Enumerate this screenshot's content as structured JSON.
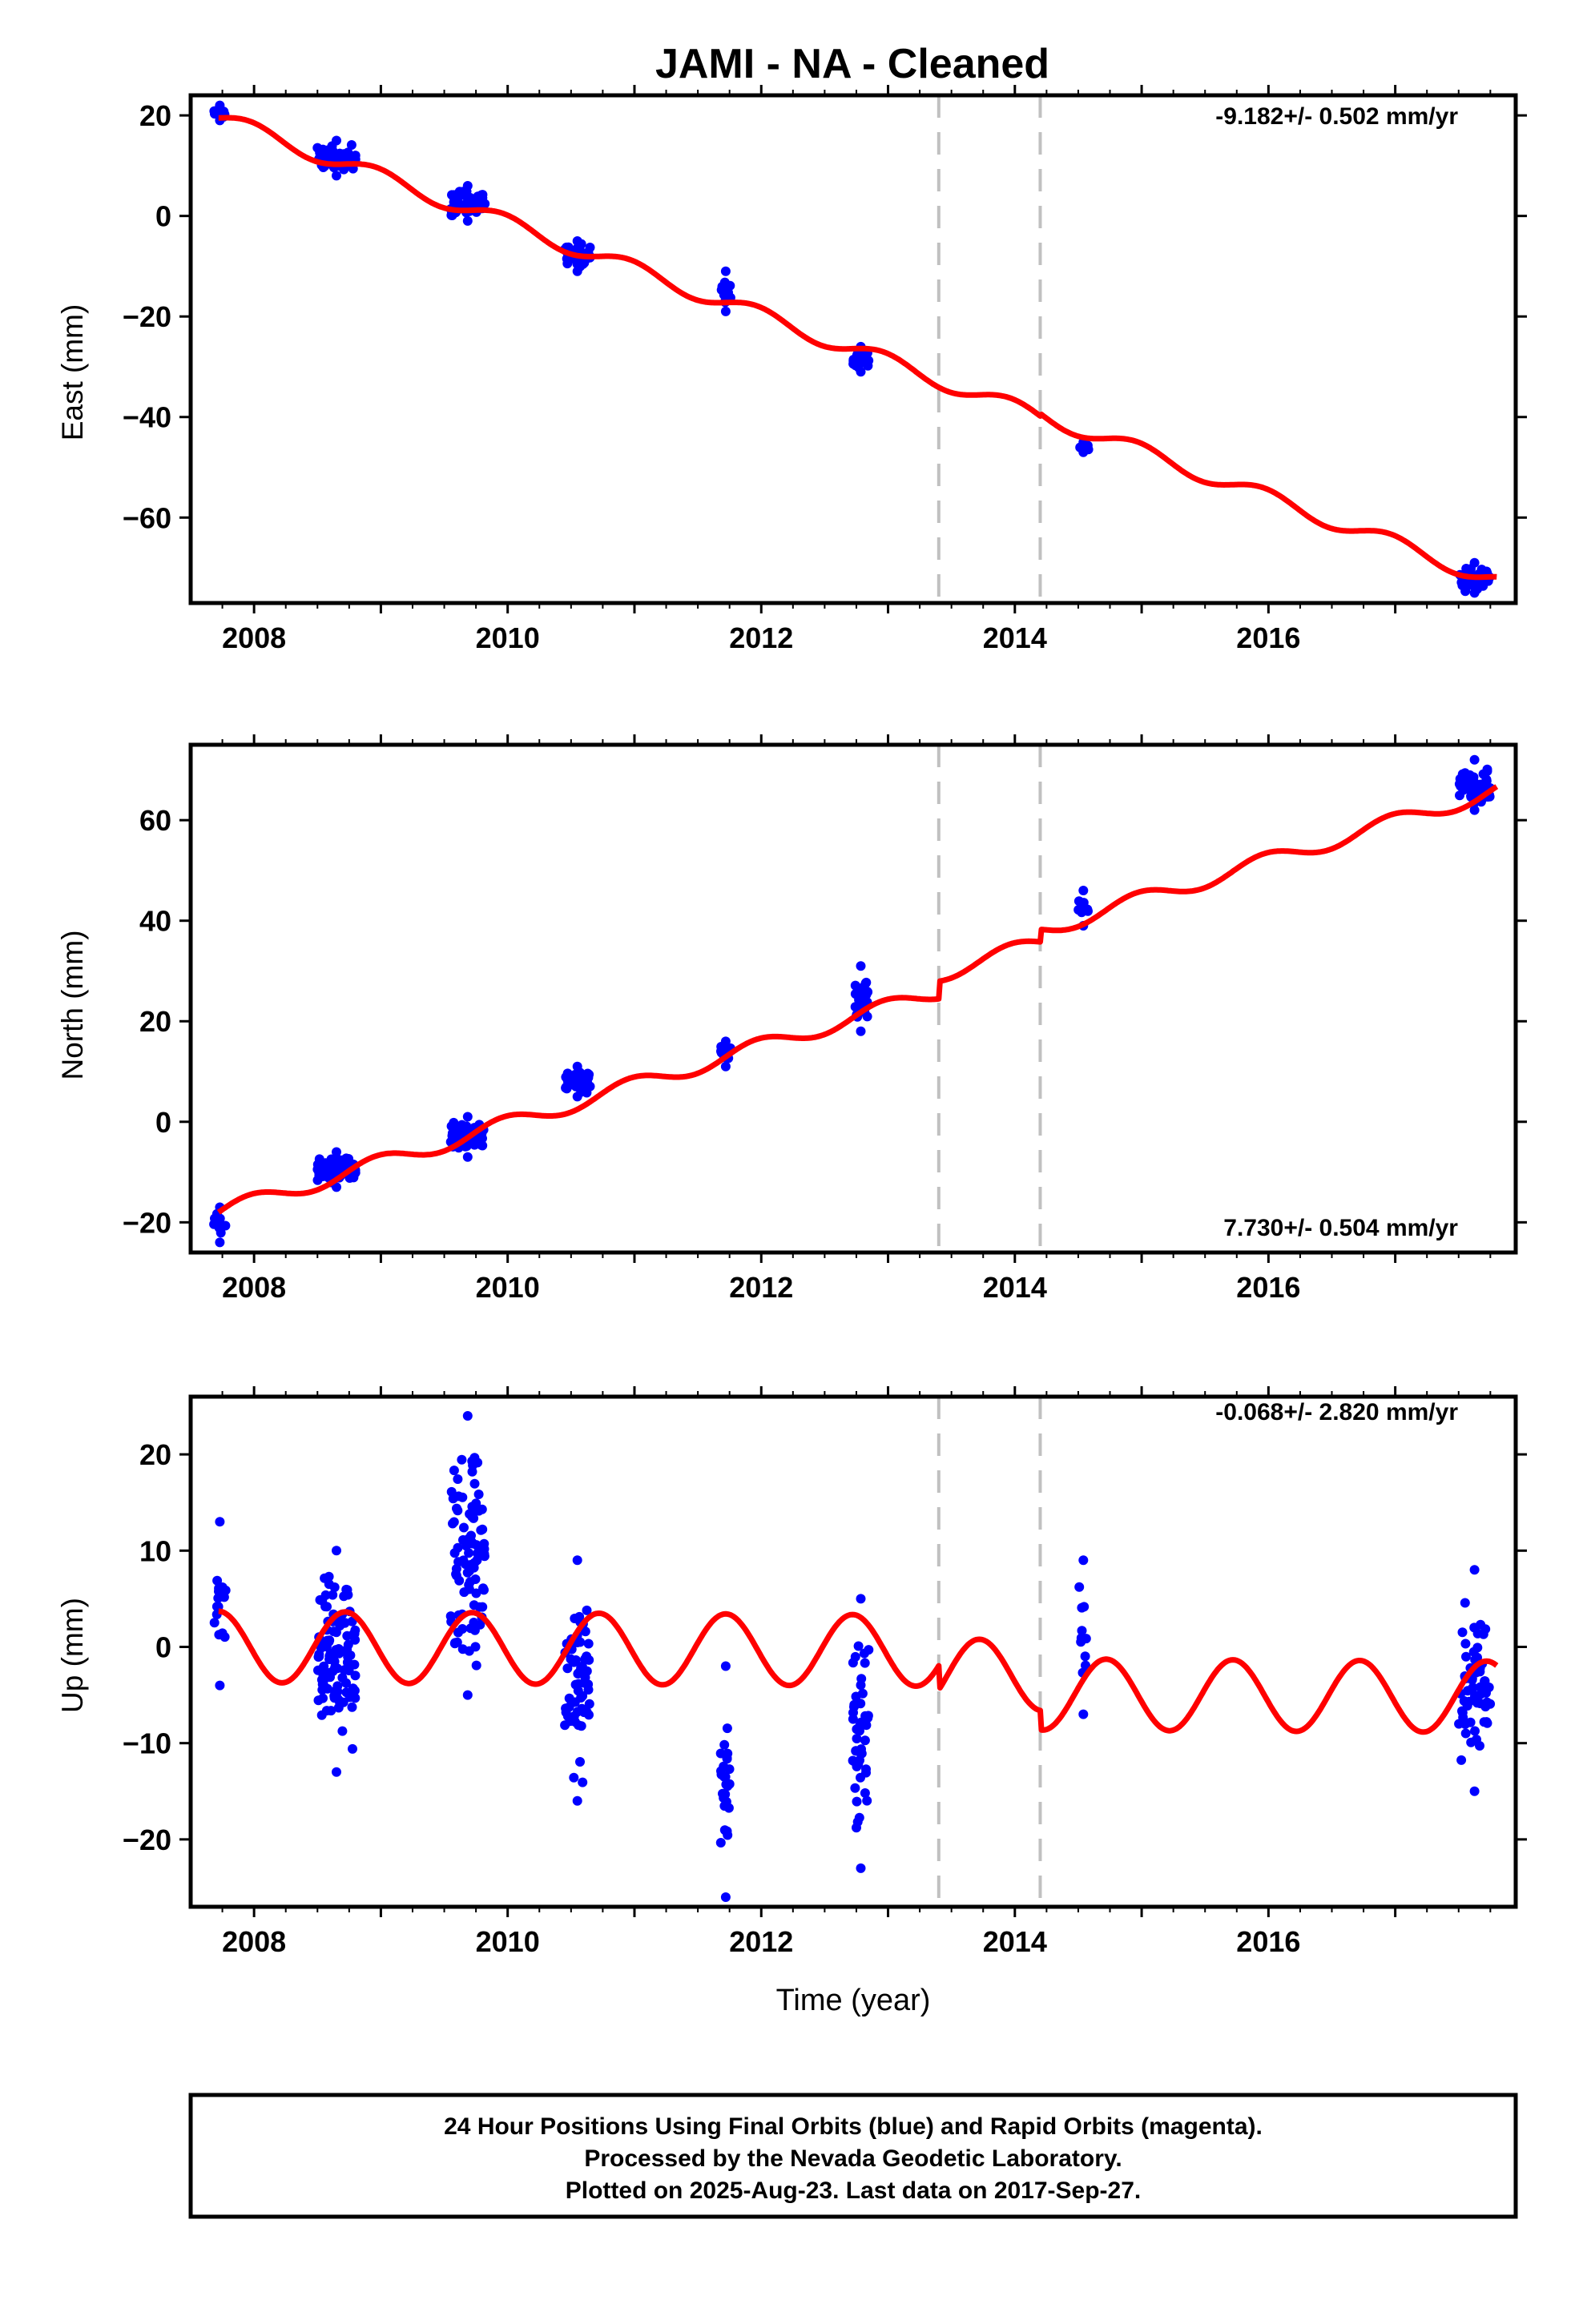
{
  "title": "JAMI  - NA - Cleaned",
  "xlabel": "Time (year)",
  "footer": [
    "24 Hour Positions Using Final Orbits (blue) and Rapid Orbits (magenta).",
    "Processed by the Nevada Geodetic Laboratory.",
    "Plotted on 2025-Aug-23. Last data on 2017-Sep-27."
  ],
  "colors": {
    "data": "#0000ff",
    "model": "#ff0000",
    "breaks": "#c0c0c0",
    "frame": "#000000"
  },
  "chart_data": [
    {
      "type": "scatter",
      "component": "East",
      "ylabel": "East (mm)",
      "rate_label": "-9.182+/- 0.502 mm/yr",
      "xlim": [
        2007.5,
        2017.95
      ],
      "ylim": [
        -77,
        24
      ],
      "xticks": [
        2008,
        2010,
        2012,
        2014,
        2016
      ],
      "yticks": [
        20,
        0,
        -20,
        -40,
        -60
      ],
      "grid": false,
      "breaks": [
        2013.4,
        2014.2
      ],
      "model": {
        "intercept": 19.5,
        "t0": 2007.72,
        "rate": -9.182,
        "amp": 1.6,
        "phase": 0,
        "offsets": [
          {
            "t": 2014.2,
            "dy": 0.5
          }
        ]
      },
      "clusters": [
        {
          "x": [
            2007.68,
            2007.78
          ],
          "y": [
            19,
            22
          ],
          "n": 10
        },
        {
          "x": [
            2008.5,
            2008.8
          ],
          "y": [
            8,
            15
          ],
          "n": 70
        },
        {
          "x": [
            2009.55,
            2009.82
          ],
          "y": [
            -1,
            6
          ],
          "n": 60
        },
        {
          "x": [
            2010.45,
            2010.65
          ],
          "y": [
            -11,
            -5
          ],
          "n": 45
        },
        {
          "x": [
            2011.68,
            2011.76
          ],
          "y": [
            -19,
            -11
          ],
          "n": 15
        },
        {
          "x": [
            2012.72,
            2012.85
          ],
          "y": [
            -31,
            -26
          ],
          "n": 30
        },
        {
          "x": [
            2014.5,
            2014.58
          ],
          "y": [
            -47,
            -45
          ],
          "n": 8
        },
        {
          "x": [
            2017.5,
            2017.75
          ],
          "y": [
            -75,
            -69
          ],
          "n": 50
        }
      ]
    },
    {
      "type": "scatter",
      "component": "North",
      "ylabel": "North (mm)",
      "rate_label": "7.730+/- 0.504 mm/yr",
      "xlim": [
        2007.5,
        2017.95
      ],
      "ylim": [
        -26,
        75
      ],
      "xticks": [
        2008,
        2010,
        2012,
        2014,
        2016
      ],
      "yticks": [
        60,
        40,
        20,
        0,
        -20
      ],
      "grid": false,
      "breaks": [
        2013.4,
        2014.2
      ],
      "model": {
        "intercept": -18,
        "t0": 2007.72,
        "rate": 7.73,
        "amp": 1.6,
        "phase": 0,
        "offsets": [
          {
            "t": 2013.4,
            "dy": 3.5
          },
          {
            "t": 2014.2,
            "dy": 2.5
          }
        ]
      },
      "clusters": [
        {
          "x": [
            2007.68,
            2007.78
          ],
          "y": [
            -24,
            -17
          ],
          "n": 10
        },
        {
          "x": [
            2008.5,
            2008.8
          ],
          "y": [
            -13,
            -6
          ],
          "n": 90
        },
        {
          "x": [
            2009.55,
            2009.82
          ],
          "y": [
            -7,
            1
          ],
          "n": 70
        },
        {
          "x": [
            2010.45,
            2010.65
          ],
          "y": [
            5,
            11
          ],
          "n": 40
        },
        {
          "x": [
            2011.68,
            2011.76
          ],
          "y": [
            11,
            16
          ],
          "n": 12
        },
        {
          "x": [
            2012.72,
            2012.85
          ],
          "y": [
            18,
            31
          ],
          "n": 30
        },
        {
          "x": [
            2014.5,
            2014.58
          ],
          "y": [
            39,
            46
          ],
          "n": 8
        },
        {
          "x": [
            2017.5,
            2017.75
          ],
          "y": [
            62,
            72
          ],
          "n": 50
        }
      ]
    },
    {
      "type": "scatter",
      "component": "Up",
      "ylabel": "Up (mm)",
      "rate_label": "-0.068+/- 2.820 mm/yr",
      "xlim": [
        2007.5,
        2017.95
      ],
      "ylim": [
        -27,
        26
      ],
      "xticks": [
        2008,
        2010,
        2012,
        2014,
        2016
      ],
      "yticks": [
        20,
        10,
        0,
        -10,
        -20
      ],
      "grid": false,
      "breaks": [
        2013.4,
        2014.2
      ],
      "model": {
        "intercept": 0,
        "t0": 2007.72,
        "rate": -0.068,
        "amp": 3.7,
        "phase": 1.57,
        "offsets": [
          {
            "t": 2013.4,
            "dy": -2.5
          },
          {
            "t": 2014.2,
            "dy": -2
          }
        ]
      },
      "clusters": [
        {
          "x": [
            2007.68,
            2007.78
          ],
          "y": [
            -4,
            13
          ],
          "n": 15
        },
        {
          "x": [
            2008.5,
            2008.8
          ],
          "y": [
            -13,
            10
          ],
          "n": 110
        },
        {
          "x": [
            2009.55,
            2009.82
          ],
          "y": [
            -5,
            24
          ],
          "n": 90
        },
        {
          "x": [
            2010.45,
            2010.65
          ],
          "y": [
            -16,
            9
          ],
          "n": 60
        },
        {
          "x": [
            2011.68,
            2011.76
          ],
          "y": [
            -26,
            -2
          ],
          "n": 25
        },
        {
          "x": [
            2012.72,
            2012.85
          ],
          "y": [
            -23,
            5
          ],
          "n": 45
        },
        {
          "x": [
            2014.5,
            2014.58
          ],
          "y": [
            -7,
            9
          ],
          "n": 10
        },
        {
          "x": [
            2017.5,
            2017.75
          ],
          "y": [
            -15,
            8
          ],
          "n": 60
        }
      ]
    }
  ]
}
